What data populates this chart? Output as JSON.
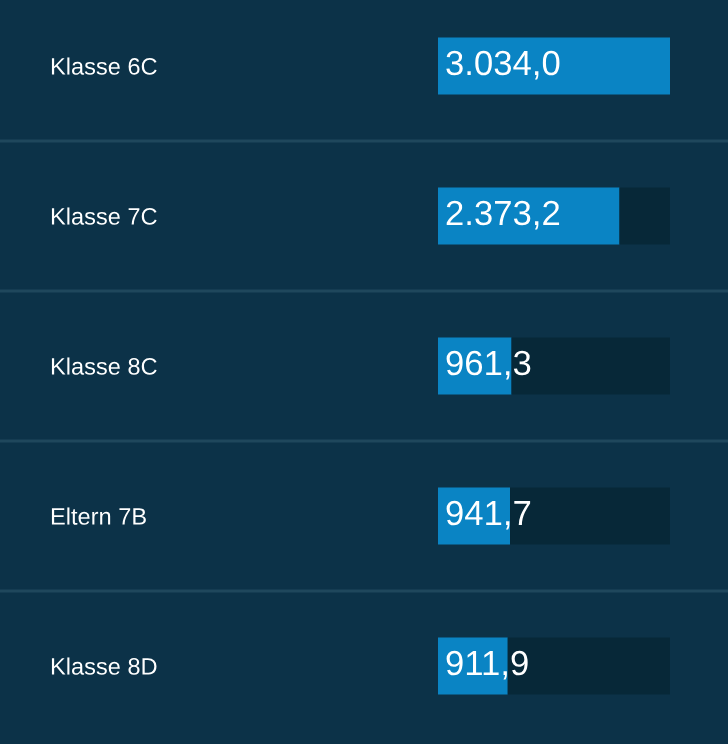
{
  "chart_data": {
    "type": "bar",
    "orientation": "horizontal",
    "stacked": true,
    "categories": [
      "Klasse 6C",
      "Klasse 7C",
      "Klasse 8C",
      "Eltern 7B",
      "Klasse 8D"
    ],
    "series": [
      {
        "color": "#0a84c4",
        "values": [
          3034.0,
          2373.2,
          961.3,
          941.7,
          911.9
        ],
        "value_labels": [
          "3.034,0",
          "2.373,2",
          "961,3",
          "941,7",
          "911,9"
        ]
      },
      {
        "color": "#072838",
        "values": [
          null,
          660.8,
          2072.7,
          2092.3,
          2122.1
        ]
      }
    ]
  }
}
